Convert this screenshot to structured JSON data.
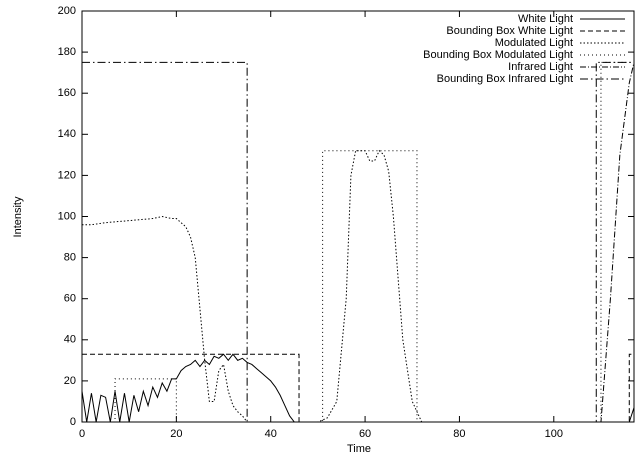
{
  "chart_data": {
    "type": "line",
    "x_label": "Time",
    "y_label": "Intensity",
    "xlim": [
      0,
      117
    ],
    "ylim": [
      0,
      200
    ],
    "xticks": [
      0,
      20,
      40,
      60,
      80,
      100
    ],
    "yticks": [
      0,
      20,
      40,
      60,
      80,
      100,
      120,
      140,
      160,
      180,
      200
    ],
    "legend": "top-right",
    "series": [
      {
        "name": "White Light",
        "color": "#000000",
        "dash": "none",
        "x": [
          0,
          1,
          2,
          3,
          4,
          5,
          6,
          7,
          8,
          9,
          10,
          11,
          12,
          13,
          14,
          15,
          16,
          17,
          18,
          19,
          20,
          21,
          22,
          23,
          24,
          25,
          26,
          27,
          28,
          29,
          30,
          31,
          32,
          33,
          34,
          35,
          36,
          37,
          38,
          39,
          40,
          41,
          42,
          43,
          44,
          45,
          46,
          110,
          116,
          117
        ],
        "values": [
          15,
          0,
          14,
          0,
          13,
          12,
          0,
          15,
          0,
          14,
          0,
          13,
          5,
          15,
          8,
          17,
          12,
          19,
          15,
          21,
          21,
          25,
          27,
          28,
          30,
          27,
          30,
          28,
          32,
          31,
          33,
          30,
          33,
          30,
          31,
          29,
          28,
          26,
          24,
          22,
          20,
          17,
          13,
          8,
          3,
          0,
          0,
          0,
          0,
          7
        ]
      },
      {
        "name": "Bounding Box White Light",
        "color": "#000000",
        "dash": "5,3",
        "x": [
          0,
          46,
          46,
          116,
          116,
          117
        ],
        "values": [
          33,
          33,
          0,
          0,
          33,
          33
        ]
      },
      {
        "name": "Modulated Light",
        "color": "#000000",
        "dash": "1.5,2",
        "x": [
          0,
          2,
          5,
          10,
          15,
          17,
          19,
          20,
          22,
          23,
          24,
          25,
          26,
          27,
          28,
          29,
          30,
          31,
          32,
          33,
          34,
          35,
          40,
          50,
          52,
          54,
          56,
          57,
          58,
          59,
          60,
          61,
          62,
          63,
          64,
          65,
          66,
          68,
          70,
          72,
          80,
          100,
          117
        ],
        "values": [
          96,
          96,
          97,
          98,
          99,
          100,
          99,
          99,
          95,
          90,
          80,
          55,
          30,
          10,
          10,
          25,
          28,
          15,
          8,
          5,
          3,
          0,
          0,
          0,
          2,
          10,
          60,
          120,
          132,
          132,
          132,
          127,
          127,
          132,
          130,
          122,
          100,
          40,
          10,
          0,
          0,
          0,
          0
        ]
      },
      {
        "name": "Bounding Box Modulated Light",
        "color": "#000000",
        "dash": "1,3",
        "x": [
          0,
          7,
          7,
          20,
          20,
          51,
          51,
          71,
          71,
          110,
          110,
          117
        ],
        "values": [
          0,
          0,
          21,
          21,
          0,
          0,
          132,
          132,
          0,
          0,
          175,
          175
        ]
      },
      {
        "name": "Infrared Light",
        "color": "#000000",
        "dash": "6,2,1,2",
        "x": [
          0,
          109,
          110,
          112,
          114,
          116,
          117
        ],
        "values": [
          0,
          0,
          0,
          60,
          130,
          165,
          175
        ]
      },
      {
        "name": "Bounding Box Infrared Light",
        "color": "#000000",
        "dash": "8,3,1.5,3",
        "x": [
          0,
          35,
          35,
          109,
          109,
          117
        ],
        "values": [
          175,
          175,
          0,
          0,
          175,
          175
        ]
      }
    ]
  }
}
